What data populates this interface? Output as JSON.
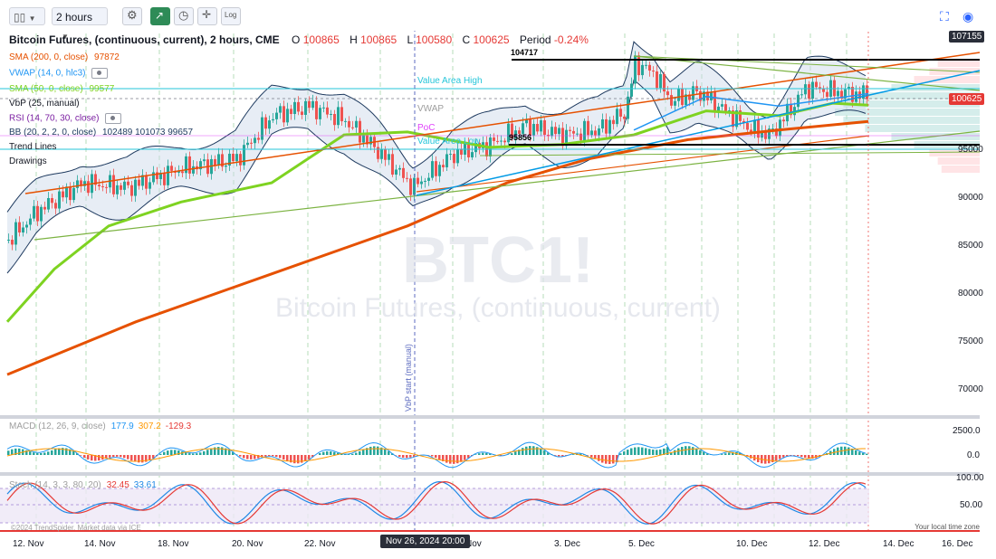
{
  "toolbar": {
    "interval": "2 hours",
    "log_label": "Log",
    "accent": "#2e8b57"
  },
  "legend": {
    "symbol_title": "Bitcoin Futures, (continuous, current), 2 hours, CME",
    "o_label": "O",
    "o_value": "100865",
    "h_label": "H",
    "h_value": "100865",
    "l_label": "L",
    "l_value": "100580",
    "c_label": "C",
    "c_value": "100625",
    "period_label": "Period",
    "period_value": "-0.24%",
    "sma200_label": "SMA (200, 0, close)",
    "sma200_value": "97872",
    "vwap_label": "VWAP (14, 0, hlc3)",
    "sma50_label": "SMA (50, 0, close)",
    "sma50_value": "99577",
    "vbp_label": "VbP (25, manual)",
    "rsi_label": "RSI (14, 70, 30, close)",
    "bb_label": "BB (20, 2, 2, 0, close)",
    "bb_values": "102489 101073 99657",
    "trend_lines_label": "Trend Lines",
    "drawings_label": "Drawings"
  },
  "chart_labels": {
    "value_area_high": "Value Area High",
    "vwap": "VWAP",
    "poc": "PoC",
    "value_area_low": "Value Area Low",
    "level_high": "104717",
    "level_low": "95856",
    "vbp_start": "VbP start (manual)",
    "watermark_symbol": "BTC1!",
    "watermark_name": "Bitcoin Futures, (continuous, current)",
    "copyright": "©2024 TrendSpider. Market data via ICE",
    "timezone": "Your local time zone"
  },
  "price_axis": {
    "ticks": [
      "95000",
      "90000",
      "85000",
      "80000",
      "75000",
      "70000"
    ],
    "top_tag": "107155",
    "last_tag": "100625"
  },
  "macd": {
    "label": "MACD (12, 26, 9, close)",
    "v1": "177.9",
    "v2": "307.2",
    "v3": "-129.3",
    "ticks": [
      "2500.0",
      "0.0"
    ]
  },
  "stoch": {
    "label": "Stoch (14, 3, 3, 80, 20)",
    "v1": "32.45",
    "v2": "33.61",
    "ticks": [
      "100.00",
      "50.00"
    ]
  },
  "time_axis": {
    "ticks": [
      "12. Nov",
      "14. Nov",
      "18. Nov",
      "20. Nov",
      "22. Nov",
      "Nov",
      "3. Dec",
      "5. Dec",
      "10. Dec",
      "12. Dec",
      "14. Dec",
      "16. Dec"
    ],
    "crosshair": "Nov 26, 2024 20:00"
  },
  "colors": {
    "sma200": "#e65100",
    "sma50": "#7ed321",
    "vwap": "#2196f3",
    "bb": "#1e3a5f",
    "up": "#26a69a",
    "down": "#ef5350",
    "value_area": "#26c6da",
    "poc": "#e040fb",
    "crosshair": "#5c6bc0"
  }
}
